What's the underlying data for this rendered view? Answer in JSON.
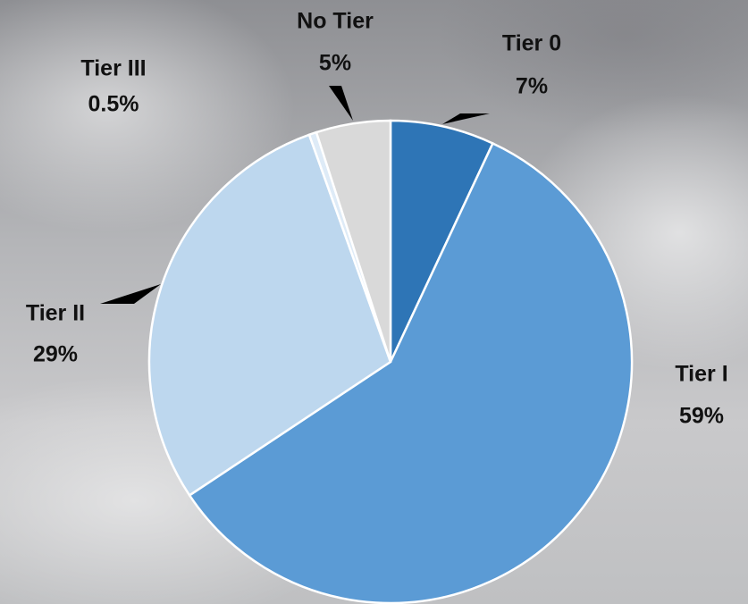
{
  "chart_data": {
    "type": "pie",
    "categories": [
      "Tier 0",
      "Tier I",
      "Tier II",
      "Tier III",
      "No Tier"
    ],
    "values": [
      7,
      59,
      29,
      0.5,
      5
    ],
    "value_labels": [
      "7%",
      "59%",
      "29%",
      "0.5%",
      "5%"
    ],
    "colors": [
      "#2e75b6",
      "#5b9bd5",
      "#bdd7ee",
      "#deebf7",
      "#d9d9d9"
    ]
  }
}
